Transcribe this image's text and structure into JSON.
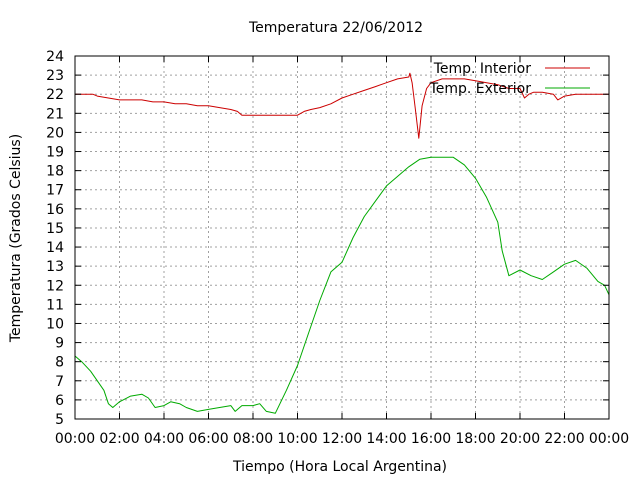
{
  "chart_data": {
    "type": "line",
    "title": "Temperatura 22/06/2012",
    "xlabel": "Tiempo (Hora Local Argentina)",
    "ylabel": "Temperatura (Grados Celsius)",
    "xlim": [
      0,
      24
    ],
    "ylim": [
      5,
      24
    ],
    "grid": true,
    "legend_position": "top-right",
    "x_ticks": [
      "00:00",
      "02:00",
      "04:00",
      "06:00",
      "08:00",
      "10:00",
      "12:00",
      "14:00",
      "16:00",
      "18:00",
      "20:00",
      "22:00",
      "00:00"
    ],
    "y_ticks": [
      5,
      6,
      7,
      8,
      9,
      10,
      11,
      12,
      13,
      14,
      15,
      16,
      17,
      18,
      19,
      20,
      21,
      22,
      23,
      24
    ],
    "series": [
      {
        "name": "Temp. Interior",
        "color": "#cc0000",
        "x": [
          0,
          0.5,
          0.8,
          1.0,
          1.5,
          2.0,
          2.5,
          3.0,
          3.5,
          4.0,
          4.5,
          5.0,
          5.5,
          6.0,
          6.5,
          7.0,
          7.3,
          7.5,
          8.0,
          8.5,
          9.0,
          9.5,
          10.0,
          10.3,
          10.6,
          11.0,
          11.5,
          12.0,
          12.5,
          13.0,
          13.5,
          14.0,
          14.5,
          15.0,
          15.05,
          15.15,
          15.3,
          15.45,
          15.6,
          15.8,
          16.0,
          16.5,
          17.0,
          17.5,
          18.0,
          18.5,
          19.0,
          19.5,
          20.0,
          20.2,
          20.4,
          20.6,
          21.0,
          21.5,
          21.7,
          22.0,
          22.5,
          23.0,
          23.5,
          24.0
        ],
        "y": [
          22.0,
          22.0,
          22.0,
          21.9,
          21.8,
          21.7,
          21.7,
          21.7,
          21.6,
          21.6,
          21.5,
          21.5,
          21.4,
          21.4,
          21.3,
          21.2,
          21.1,
          20.9,
          20.9,
          20.9,
          20.9,
          20.9,
          20.9,
          21.1,
          21.2,
          21.3,
          21.5,
          21.8,
          22.0,
          22.2,
          22.4,
          22.6,
          22.8,
          22.9,
          23.1,
          22.6,
          21.2,
          19.7,
          21.4,
          22.3,
          22.6,
          22.8,
          22.8,
          22.8,
          22.7,
          22.6,
          22.5,
          22.3,
          22.3,
          21.8,
          22.0,
          22.1,
          22.1,
          22.0,
          21.7,
          21.9,
          22.0,
          22.0,
          22.0,
          22.0
        ]
      },
      {
        "name": "Temp. Exterior",
        "color": "#00aa00",
        "x": [
          0,
          0.3,
          0.7,
          1.0,
          1.3,
          1.5,
          1.7,
          2.0,
          2.5,
          3.0,
          3.3,
          3.6,
          4.0,
          4.3,
          4.7,
          5.0,
          5.5,
          6.0,
          6.5,
          7.0,
          7.2,
          7.5,
          8.0,
          8.3,
          8.6,
          9.0,
          9.5,
          10.0,
          10.5,
          11.0,
          11.5,
          12.0,
          12.5,
          13.0,
          13.5,
          14.0,
          14.5,
          15.0,
          15.5,
          16.0,
          16.5,
          17.0,
          17.5,
          18.0,
          18.5,
          19.0,
          19.2,
          19.5,
          20.0,
          20.5,
          21.0,
          21.5,
          22.0,
          22.5,
          23.0,
          23.5,
          23.8,
          24.0
        ],
        "y": [
          8.3,
          8.0,
          7.5,
          7.0,
          6.5,
          5.8,
          5.6,
          5.9,
          6.2,
          6.3,
          6.1,
          5.6,
          5.7,
          5.9,
          5.8,
          5.6,
          5.4,
          5.5,
          5.6,
          5.7,
          5.4,
          5.7,
          5.7,
          5.8,
          5.4,
          5.3,
          6.5,
          7.8,
          9.5,
          11.2,
          12.7,
          13.2,
          14.5,
          15.6,
          16.4,
          17.2,
          17.7,
          18.2,
          18.6,
          18.7,
          18.7,
          18.7,
          18.3,
          17.6,
          16.6,
          15.3,
          13.8,
          12.5,
          12.8,
          12.5,
          12.3,
          12.7,
          13.1,
          13.3,
          12.9,
          12.2,
          12.0,
          11.5
        ]
      }
    ]
  }
}
